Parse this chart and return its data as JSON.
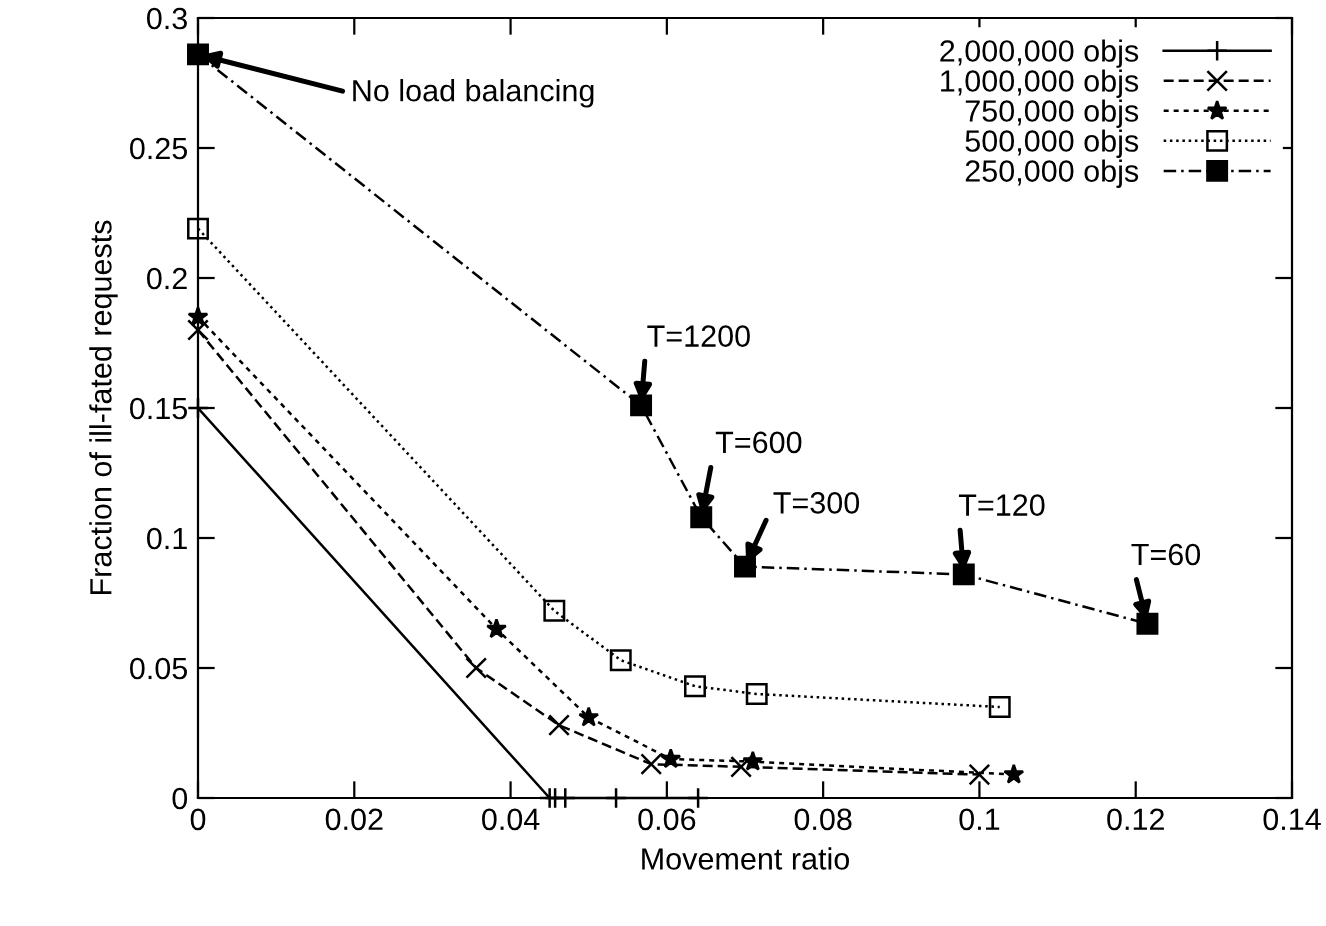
{
  "chart_data": {
    "type": "line",
    "xlabel": "Movement ratio",
    "ylabel": "Fraction of ill-fated requests",
    "xlim": [
      0,
      0.14
    ],
    "xticks": [
      0,
      0.02,
      0.04,
      0.06,
      0.08,
      0.1,
      0.12,
      0.14
    ],
    "ylim": [
      0,
      0.3
    ],
    "yticks": [
      0,
      0.05,
      0.1,
      0.15,
      0.2,
      0.25,
      0.3
    ],
    "grid": false,
    "legend": "top right",
    "series": [
      {
        "name": "2,000,000 objs",
        "color": "#000000",
        "marker": "plus",
        "line_style": "solid",
        "x": [
          0,
          0.045,
          0.0457,
          0.047,
          0.0535,
          0.064
        ],
        "values": [
          0.15,
          0,
          0,
          0,
          0,
          0
        ]
      },
      {
        "name": "1,000,000 objs",
        "color": "#000000",
        "marker": "cross",
        "line_style": "dashed",
        "x": [
          0,
          0.0356,
          0.0462,
          0.058,
          0.0695,
          0.1
        ],
        "values": [
          0.18,
          0.05,
          0.028,
          0.013,
          0.012,
          0.009
        ]
      },
      {
        "name": "750,000 objs",
        "color": "#000000",
        "marker": "star",
        "line_style": "dashed",
        "x": [
          0,
          0.0382,
          0.05,
          0.0605,
          0.071,
          0.1044
        ],
        "values": [
          0.185,
          0.065,
          0.031,
          0.015,
          0.014,
          0.009
        ]
      },
      {
        "name": "500,000 objs",
        "color": "#000000",
        "marker": "square",
        "line_style": "dotted",
        "x": [
          0,
          0.0456,
          0.0541,
          0.0636,
          0.0715,
          0.1026
        ],
        "values": [
          0.219,
          0.072,
          0.053,
          0.043,
          0.04,
          0.035
        ]
      },
      {
        "name": "250,000 objs",
        "color": "#000000",
        "marker": "square",
        "line_style": "dashdot",
        "x": [
          0,
          0.0567,
          0.0644,
          0.07,
          0.098,
          0.1215
        ],
        "values": [
          0.286,
          0.151,
          0.108,
          0.089,
          0.086,
          0.067
        ]
      }
    ],
    "annotations": [
      {
        "text": "No load balancing",
        "x": 0,
        "y": 0.286
      },
      {
        "text": "T=1200",
        "x": 0.0567,
        "y": 0.151
      },
      {
        "text": "T=600",
        "x": 0.0644,
        "y": 0.108
      },
      {
        "text": "T=300",
        "x": 0.07,
        "y": 0.089
      },
      {
        "text": "T=120",
        "x": 0.098,
        "y": 0.086
      },
      {
        "text": "T=60",
        "x": 0.1215,
        "y": 0.067
      }
    ]
  }
}
